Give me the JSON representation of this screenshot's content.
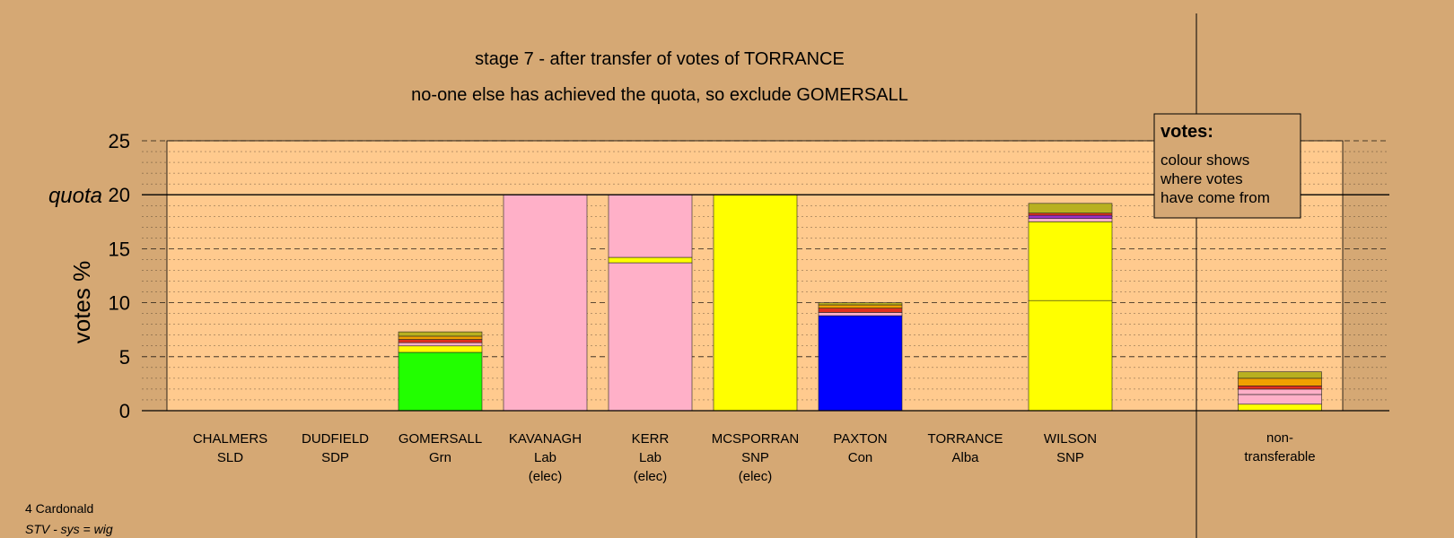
{
  "chart_data": {
    "type": "bar",
    "stacked": true,
    "title": "stage 7 - after transfer of votes of TORRANCE",
    "subtitle": "no-one else has achieved the quota, so exclude GOMERSALL",
    "ylabel": "votes %",
    "ylim": [
      0,
      25
    ],
    "yticks": [
      "0",
      "5",
      "10",
      "15",
      "20",
      "25"
    ],
    "quota": {
      "label": "quota",
      "value": 20
    },
    "grid": "dashed major every 5, dotted minor every 1",
    "categories": [
      {
        "name": "CHALMERS",
        "party": "SLD",
        "status": ""
      },
      {
        "name": "DUDFIELD",
        "party": "SDP",
        "status": ""
      },
      {
        "name": "GOMERSALL",
        "party": "Grn",
        "status": ""
      },
      {
        "name": "KAVANAGH",
        "party": "Lab",
        "status": "(elec)"
      },
      {
        "name": "KERR",
        "party": "Lab",
        "status": "(elec)"
      },
      {
        "name": "MCSPORRAN",
        "party": "SNP",
        "status": "(elec)"
      },
      {
        "name": "PAXTON",
        "party": "Con",
        "status": ""
      },
      {
        "name": "TORRANCE",
        "party": "Alba",
        "status": ""
      },
      {
        "name": "WILSON",
        "party": "SNP",
        "status": ""
      }
    ],
    "nontransferable_label": [
      "non-",
      "transferable"
    ],
    "stacks": [
      [],
      [],
      [
        {
          "value": 5.4,
          "color": "#22ff00"
        },
        {
          "value": 0.6,
          "color": "#ffff00"
        },
        {
          "value": 0.3,
          "color": "#ffb0c8"
        },
        {
          "value": 0.3,
          "color": "#e0301e"
        },
        {
          "value": 0.3,
          "color": "#f0a000"
        },
        {
          "value": 0.4,
          "color": "#b8b020"
        }
      ],
      [
        {
          "value": 20.0,
          "color": "#ffb0c8"
        }
      ],
      [
        {
          "value": 13.7,
          "color": "#ffb0c8"
        },
        {
          "value": 0.5,
          "color": "#ffff00"
        },
        {
          "value": 5.8,
          "color": "#ffb0c8"
        }
      ],
      [
        {
          "value": 20.0,
          "color": "#ffff00"
        }
      ],
      [
        {
          "value": 8.8,
          "color": "#0000ff"
        },
        {
          "value": 0.3,
          "color": "#ffb0c8"
        },
        {
          "value": 0.4,
          "color": "#e0301e"
        },
        {
          "value": 0.3,
          "color": "#f0a000"
        },
        {
          "value": 0.2,
          "color": "#b8b020"
        }
      ],
      [],
      [
        {
          "value": 10.2,
          "color": "#ffff00"
        },
        {
          "value": 7.3,
          "color": "#ffff00"
        },
        {
          "value": 0.3,
          "color": "#ffb0c8"
        },
        {
          "value": 0.3,
          "color": "#9b30c8"
        },
        {
          "value": 0.2,
          "color": "#e0301e"
        },
        {
          "value": 0.9,
          "color": "#b8b020"
        }
      ]
    ],
    "nontransferable": [
      {
        "value": 0.6,
        "color": "#ffff00"
      },
      {
        "value": 0.9,
        "color": "#ffb0c8"
      },
      {
        "value": 0.5,
        "color": "#ffb0c8"
      },
      {
        "value": 0.3,
        "color": "#e0301e"
      },
      {
        "value": 0.7,
        "color": "#f0a000"
      },
      {
        "value": 0.6,
        "color": "#b8b020"
      }
    ]
  },
  "legend": {
    "title": "votes:",
    "lines": [
      "colour shows",
      "where votes",
      "have come from"
    ]
  },
  "footer": {
    "ward": "4 Cardonald",
    "system": "STV - sys = wig"
  },
  "colors": {
    "background": "#d5a874",
    "plot_area": "#ffca8e",
    "legend_box": "#d5a874"
  }
}
